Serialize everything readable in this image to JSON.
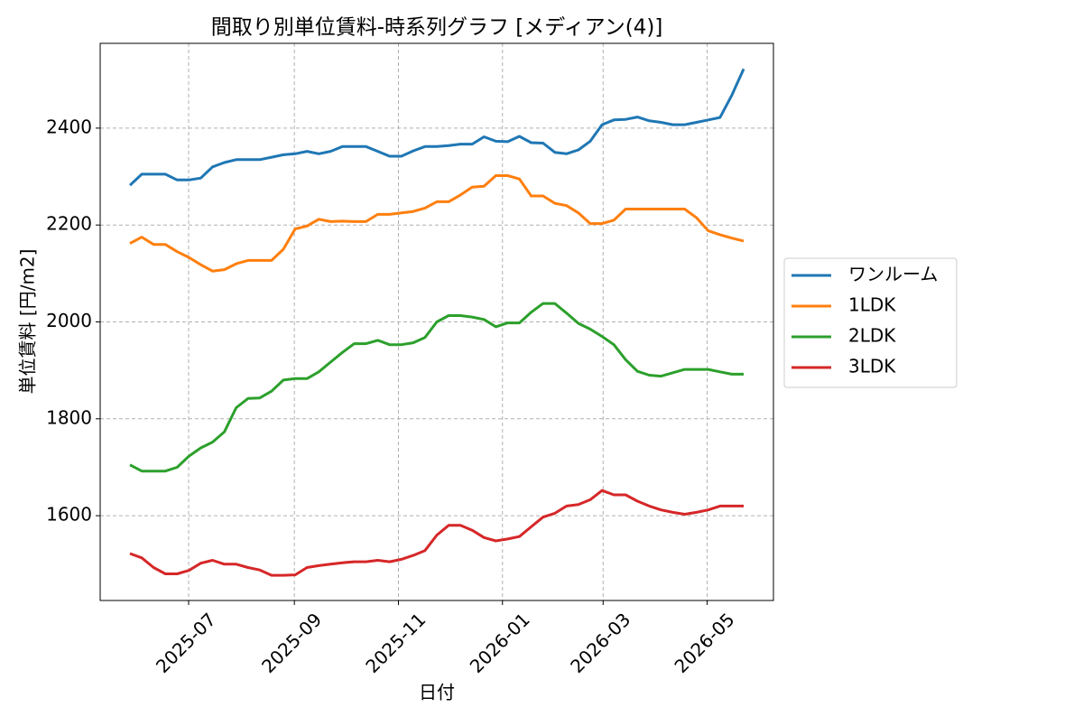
{
  "chart_data": {
    "type": "line",
    "title": "間取り別単位賃料-時系列グラフ [メディアン(4)]",
    "x_label": "日付",
    "y_label": "単位賃料 [円/m2]",
    "x": [
      null,
      null,
      null,
      null,
      null,
      null,
      null,
      null,
      null,
      null,
      null,
      null,
      null,
      null,
      null,
      null,
      null,
      null,
      null,
      null,
      null,
      null,
      null,
      null,
      null,
      null,
      null,
      null,
      null,
      null,
      null,
      null,
      null,
      null,
      null,
      null,
      null,
      null,
      null,
      null,
      null,
      null,
      null,
      null,
      null,
      null,
      null,
      null,
      null,
      null,
      null,
      null,
      null
    ],
    "xticks": [
      "2025-07",
      "2025-09",
      "2025-11",
      "2026-01",
      "2026-03",
      "2026-05"
    ],
    "ylim": [
      1425,
      2575
    ],
    "yticks": [
      1600,
      1800,
      2000,
      2200,
      2400
    ],
    "grid": true,
    "legend": "outside right",
    "series": [
      {
        "name": "ワンルーム",
        "color": "#1f77b4",
        "values": [
          2282,
          2305,
          2305,
          2305,
          2293,
          2293,
          2297,
          2320,
          2329,
          2335,
          2335,
          2335,
          2340,
          2345,
          2347,
          2352,
          2347,
          2352,
          2362,
          2362,
          2362,
          2352,
          2342,
          2342,
          2353,
          2362,
          2362,
          2364,
          2367,
          2367,
          2382,
          2373,
          2372,
          2383,
          2370,
          2369,
          2350,
          2347,
          2355,
          2373,
          2407,
          2417,
          2418,
          2423,
          2415,
          2412,
          2407,
          2407,
          2412,
          2417,
          2422,
          2468,
          2522
        ]
      },
      {
        "name": "1LDK",
        "color": "#ff7f0e",
        "values": [
          2162,
          2175,
          2160,
          2160,
          2145,
          2133,
          2118,
          2105,
          2108,
          2120,
          2127,
          2127,
          2127,
          2150,
          2192,
          2198,
          2212,
          2207,
          2208,
          2207,
          2207,
          2222,
          2222,
          2225,
          2228,
          2235,
          2248,
          2248,
          2262,
          2278,
          2280,
          2302,
          2302,
          2295,
          2260,
          2260,
          2245,
          2240,
          2225,
          2203,
          2203,
          2210,
          2233,
          2233,
          2233,
          2233,
          2233,
          2233,
          2215,
          2188,
          2180,
          2173,
          2167
        ]
      },
      {
        "name": "2LDK",
        "color": "#2ca02c",
        "values": [
          1705,
          1692,
          1692,
          1692,
          1700,
          1723,
          1740,
          1752,
          1773,
          1823,
          1842,
          1843,
          1857,
          1880,
          1883,
          1883,
          1897,
          1917,
          1937,
          1955,
          1955,
          1962,
          1953,
          1953,
          1957,
          1968,
          2000,
          2013,
          2013,
          2010,
          2005,
          1990,
          1998,
          1998,
          2020,
          2038,
          2038,
          2018,
          1997,
          1985,
          1970,
          1953,
          1922,
          1898,
          1890,
          1888,
          1895,
          1902,
          1902,
          1902,
          1897,
          1892,
          1892
        ]
      },
      {
        "name": "3LDK",
        "color": "#d62728",
        "values": [
          1522,
          1513,
          1493,
          1480,
          1480,
          1487,
          1502,
          1508,
          1500,
          1500,
          1493,
          1488,
          1477,
          1477,
          1478,
          1493,
          1497,
          1500,
          1503,
          1505,
          1505,
          1508,
          1505,
          1510,
          1518,
          1528,
          1560,
          1580,
          1580,
          1570,
          1555,
          1548,
          1552,
          1557,
          1577,
          1597,
          1605,
          1620,
          1623,
          1633,
          1652,
          1643,
          1643,
          1630,
          1620,
          1612,
          1607,
          1603,
          1607,
          1612,
          1620,
          1620,
          1620
        ]
      }
    ]
  }
}
